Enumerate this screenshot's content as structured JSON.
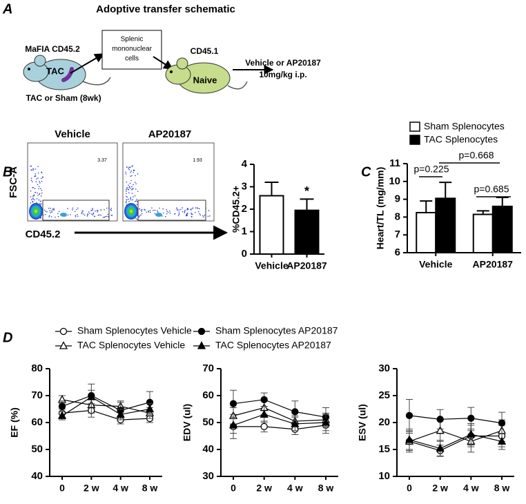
{
  "figure": {
    "panel_labels": [
      "A",
      "B",
      "C",
      "D"
    ],
    "schematic": {
      "title": "Adoptive transfer schematic",
      "donor": "MaFIA CD45.2",
      "donor_mark": "TAC",
      "donor_note": "TAC or Sham (8wk)",
      "box": [
        "Splenic",
        "mononuclear",
        "cells"
      ],
      "recipient": "CD45.1",
      "recipient_mark": "Naive",
      "treatment": [
        "Vehicle or AP20187",
        "10mg/kg i.p."
      ]
    },
    "flow": {
      "titles": [
        "Vehicle",
        "AP20187"
      ],
      "gates": [
        3.37,
        1.93
      ],
      "y_label": "FSC-A",
      "x_label": "CD45.2"
    }
  },
  "chart_data": [
    {
      "type": "bar",
      "y_label": "%CD45.2+",
      "categories": [
        "Vehicle",
        "AP20187"
      ],
      "values": [
        2.6,
        1.95
      ],
      "errors": [
        0.6,
        0.5
      ],
      "colors": [
        "#ffffff",
        "#000000"
      ],
      "ylim": [
        0,
        4
      ],
      "yticks": [
        0,
        1,
        2,
        3,
        4
      ],
      "annotation": "*"
    },
    {
      "type": "grouped_bar",
      "y_label": "Heart/TL (mg/mm)",
      "categories": [
        "Vehicle",
        "AP20187"
      ],
      "series": [
        {
          "name": "Sham Splenocytes",
          "color": "#ffffff",
          "values": [
            8.25,
            8.15
          ],
          "errors": [
            0.65,
            0.2
          ]
        },
        {
          "name": "TAC Splenocytes",
          "color": "#000000",
          "values": [
            9.05,
            8.6
          ],
          "errors": [
            0.9,
            0.5
          ]
        }
      ],
      "ylim": [
        6,
        11
      ],
      "yticks": [
        6,
        7,
        8,
        9,
        10,
        11
      ],
      "comparisons": [
        "p=0.225",
        "p=0.685",
        "p=0.668"
      ]
    },
    {
      "type": "line",
      "y_label": "EF (%)",
      "categories": [
        "0",
        "2 w",
        "4 w",
        "8 w"
      ],
      "color": "#000000",
      "ylim": [
        40,
        80
      ],
      "yticks": [
        40,
        50,
        60,
        70,
        80
      ],
      "series": [
        {
          "name": "Sham Splenocytes Vehicle",
          "marker": "circle",
          "filled": false,
          "values": [
            63.5,
            64.5,
            61,
            61.5
          ],
          "errors": [
            1.5,
            2.5,
            1.5,
            1.5
          ]
        },
        {
          "name": "TAC Splenocytes Vehicle",
          "marker": "triangle",
          "filled": false,
          "values": [
            68.5,
            66.5,
            66,
            63.5
          ],
          "errors": [
            1.5,
            3,
            2,
            2
          ]
        },
        {
          "name": "Sham Splenocytes AP20187",
          "marker": "circle",
          "filled": true,
          "values": [
            66,
            70,
            64.5,
            67.5
          ],
          "errors": [
            2,
            4.3,
            3,
            4
          ]
        },
        {
          "name": "TAC Splenocytes AP20187",
          "marker": "triangle",
          "filled": true,
          "values": [
            62.5,
            69.5,
            63,
            65
          ],
          "errors": [
            1.5,
            2.5,
            2,
            2
          ]
        }
      ]
    },
    {
      "type": "line",
      "y_label": "EDV (ul)",
      "categories": [
        "0",
        "2 w",
        "4 w",
        "8 w"
      ],
      "color": "#000000",
      "ylim": [
        30,
        70
      ],
      "yticks": [
        30,
        40,
        50,
        60,
        70
      ],
      "series": [
        {
          "marker": "circle",
          "filled": false,
          "values": [
            48.5,
            48.5,
            47.5,
            49
          ],
          "errors": [
            4.5,
            2,
            2,
            3
          ]
        },
        {
          "marker": "triangle",
          "filled": false,
          "values": [
            52.5,
            55.5,
            50.5,
            51
          ],
          "errors": [
            3,
            2.5,
            2,
            2.5
          ]
        },
        {
          "marker": "circle",
          "filled": true,
          "values": [
            57,
            58.5,
            54,
            52
          ],
          "errors": [
            5,
            2.5,
            4,
            3.5
          ]
        },
        {
          "marker": "triangle",
          "filled": true,
          "values": [
            49,
            53,
            49.5,
            50
          ],
          "errors": [
            3,
            3,
            2.5,
            3
          ]
        }
      ]
    },
    {
      "type": "line",
      "y_label": "ESV (ul)",
      "categories": [
        "0",
        "2 w",
        "4 w",
        "8 w"
      ],
      "color": "#000000",
      "ylim": [
        10,
        30
      ],
      "yticks": [
        10,
        15,
        20,
        25,
        30
      ],
      "series": [
        {
          "marker": "circle",
          "filled": false,
          "values": [
            16.5,
            14.8,
            17.5,
            17.5
          ],
          "errors": [
            1.5,
            1,
            2,
            2
          ]
        },
        {
          "marker": "triangle",
          "filled": false,
          "values": [
            16.5,
            18.5,
            16.5,
            18.5
          ],
          "errors": [
            2,
            2,
            2,
            2
          ]
        },
        {
          "marker": "circle",
          "filled": true,
          "values": [
            21.3,
            20.6,
            20.8,
            19.9
          ],
          "errors": [
            3,
            1.8,
            2,
            2
          ]
        },
        {
          "marker": "triangle",
          "filled": true,
          "values": [
            16.8,
            15.2,
            17.8,
            16.5
          ],
          "errors": [
            2,
            1.5,
            2,
            1.5
          ]
        }
      ]
    }
  ]
}
